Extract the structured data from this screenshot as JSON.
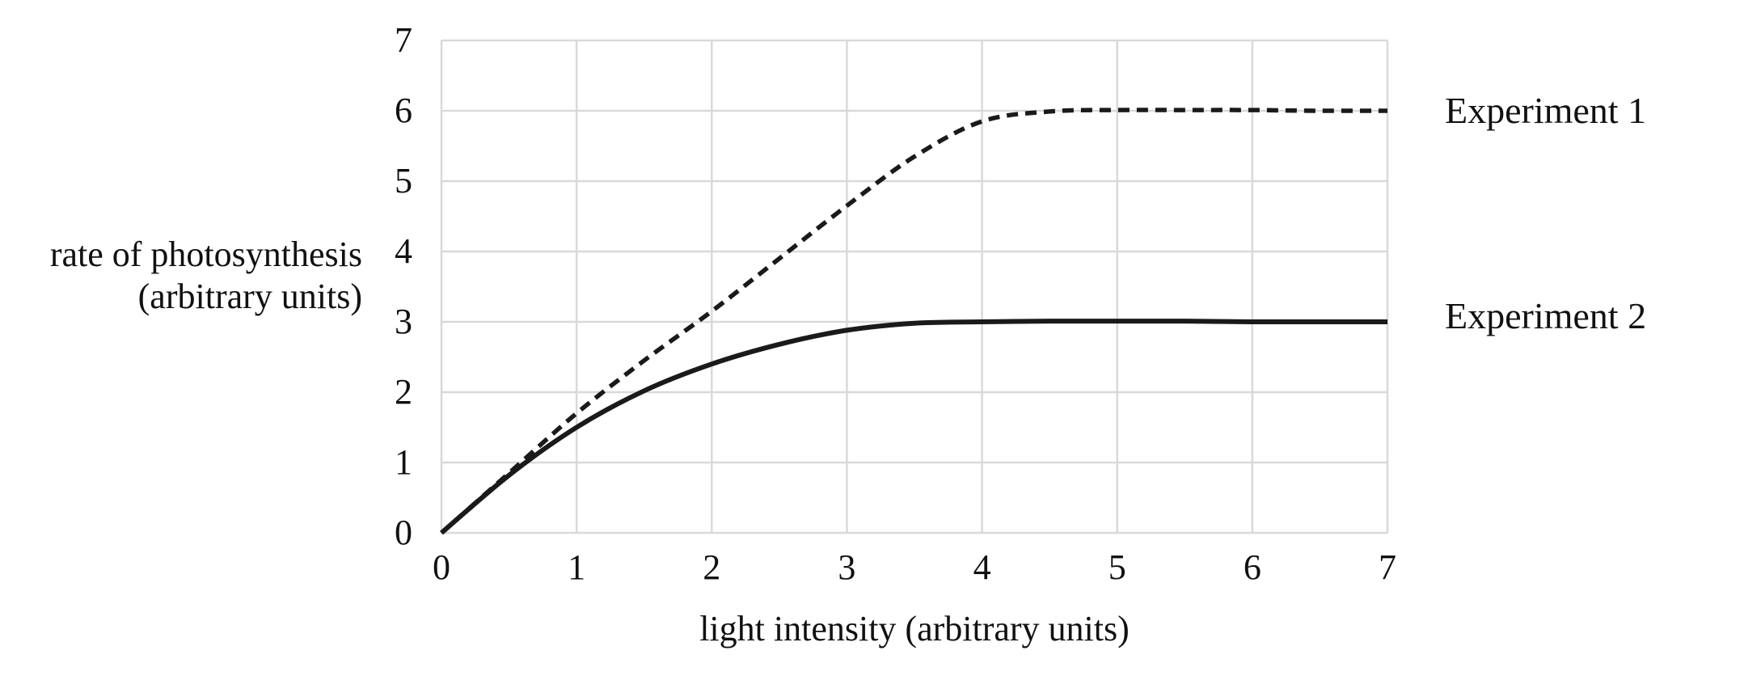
{
  "chart_data": {
    "type": "line",
    "title": "",
    "xlabel": "light intensity (arbitrary units)",
    "ylabel_line1": "rate of photosynthesis",
    "ylabel_line2": "(arbitrary units)",
    "xlim": [
      0,
      7
    ],
    "ylim": [
      0,
      7
    ],
    "x_ticks": [
      0,
      1,
      2,
      3,
      4,
      5,
      6,
      7
    ],
    "y_ticks": [
      0,
      1,
      2,
      3,
      4,
      5,
      6,
      7
    ],
    "grid": "on",
    "grid_color": "#d9d9d9",
    "line_color": "#1a1a1a",
    "legend_position": "right-of-plot",
    "series": [
      {
        "name": "Experiment 1",
        "line_style": "dashed",
        "plateau_value": 6,
        "points": [
          [
            0,
            0
          ],
          [
            0.5,
            0.85
          ],
          [
            1,
            1.7
          ],
          [
            1.5,
            2.45
          ],
          [
            2,
            3.15
          ],
          [
            2.5,
            3.9
          ],
          [
            3,
            4.65
          ],
          [
            3.5,
            5.35
          ],
          [
            4,
            5.85
          ],
          [
            4.5,
            5.99
          ],
          [
            5,
            6.01
          ],
          [
            5.5,
            6.01
          ],
          [
            6,
            6.01
          ],
          [
            6.5,
            6.0
          ],
          [
            7,
            6.0
          ]
        ]
      },
      {
        "name": "Experiment 2",
        "line_style": "solid",
        "plateau_value": 3,
        "points": [
          [
            0,
            0
          ],
          [
            0.5,
            0.82
          ],
          [
            1,
            1.5
          ],
          [
            1.5,
            2.02
          ],
          [
            2,
            2.4
          ],
          [
            2.5,
            2.68
          ],
          [
            3,
            2.88
          ],
          [
            3.5,
            2.98
          ],
          [
            4,
            3.0
          ],
          [
            4.5,
            3.01
          ],
          [
            5,
            3.01
          ],
          [
            5.5,
            3.01
          ],
          [
            6,
            3.0
          ],
          [
            6.5,
            3.0
          ],
          [
            7,
            3.0
          ]
        ]
      }
    ]
  },
  "labels": {
    "series_1": "Experiment 1",
    "series_2": "Experiment 2"
  }
}
